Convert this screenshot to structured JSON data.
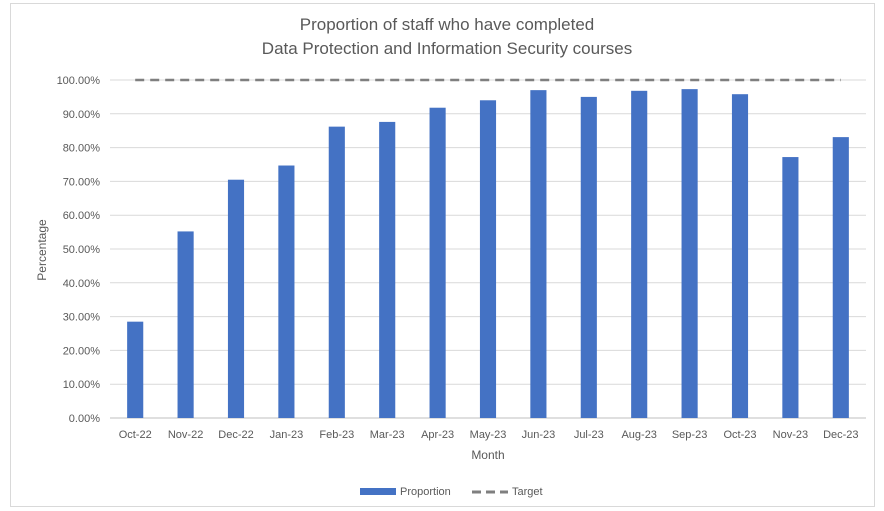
{
  "chart_data": {
    "type": "bar",
    "title_lines": [
      "Proportion of staff who have completed",
      "Data Protection and Information Security courses"
    ],
    "xlabel": "Month",
    "ylabel": "Percentage",
    "categories": [
      "Oct-22",
      "Nov-22",
      "Dec-22",
      "Jan-23",
      "Feb-23",
      "Mar-23",
      "Apr-23",
      "May-23",
      "Jun-23",
      "Jul-23",
      "Aug-23",
      "Sep-23",
      "Oct-23",
      "Nov-23",
      "Dec-23"
    ],
    "series": [
      {
        "name": "Proportion",
        "kind": "bar",
        "color": "#4472c4",
        "values": [
          28.5,
          55.2,
          70.5,
          74.7,
          86.2,
          87.6,
          91.8,
          94.0,
          97.0,
          95.0,
          96.8,
          97.3,
          95.8,
          77.2,
          83.1
        ]
      },
      {
        "name": "Target",
        "kind": "dashed-line",
        "color": "#7f7f7f",
        "values": [
          100,
          100,
          100,
          100,
          100,
          100,
          100,
          100,
          100,
          100,
          100,
          100,
          100,
          100,
          100
        ]
      }
    ],
    "ylim": [
      0,
      100
    ],
    "yticks": [
      "0.00%",
      "10.00%",
      "20.00%",
      "30.00%",
      "40.00%",
      "50.00%",
      "60.00%",
      "70.00%",
      "80.00%",
      "90.00%",
      "100.00%"
    ],
    "grid": true,
    "legend_position": "bottom"
  }
}
